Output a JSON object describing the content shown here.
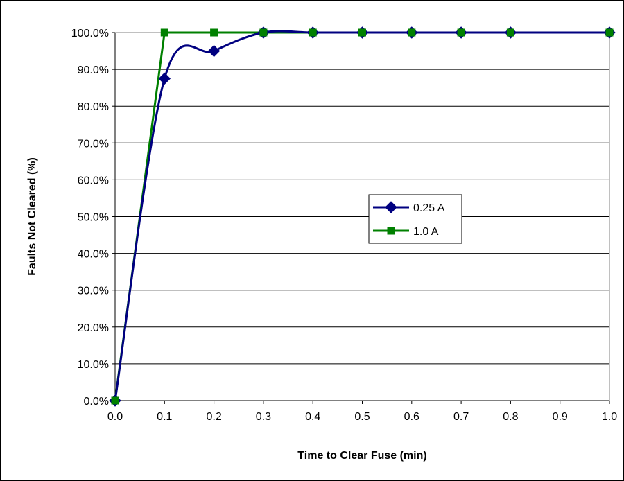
{
  "chart_data": {
    "type": "line",
    "title": "",
    "xlabel": "Time to Clear Fuse (min)",
    "ylabel": "Faults Not Cleared (%)",
    "x_ticks": [
      "0.0",
      "0.1",
      "0.2",
      "0.3",
      "0.4",
      "0.5",
      "0.6",
      "0.7",
      "0.8",
      "0.9",
      "1.0"
    ],
    "y_ticks": [
      "0.0%",
      "10.0%",
      "20.0%",
      "30.0%",
      "40.0%",
      "50.0%",
      "60.0%",
      "70.0%",
      "80.0%",
      "90.0%",
      "100.0%"
    ],
    "xlim": [
      0,
      1.0
    ],
    "ylim": [
      0,
      100
    ],
    "grid": "horizontal",
    "legend_position": "center-right",
    "series": [
      {
        "name": "0.25 A",
        "color": "#000080",
        "marker": "diamond",
        "smooth": true,
        "x": [
          0.0,
          0.1,
          0.2,
          0.3,
          0.4,
          0.5,
          0.6,
          0.7,
          0.8,
          1.0
        ],
        "y": [
          0.0,
          87.5,
          95.0,
          100.0,
          100.0,
          100.0,
          100.0,
          100.0,
          100.0,
          100.0
        ]
      },
      {
        "name": "1.0 A",
        "color": "#008000",
        "marker": "square",
        "smooth": false,
        "x": [
          0.0,
          0.1,
          0.2,
          0.3,
          0.4,
          0.5,
          0.6,
          0.7,
          0.8,
          1.0
        ],
        "y": [
          0.0,
          100.0,
          100.0,
          100.0,
          100.0,
          100.0,
          100.0,
          100.0,
          100.0,
          100.0
        ]
      }
    ]
  }
}
